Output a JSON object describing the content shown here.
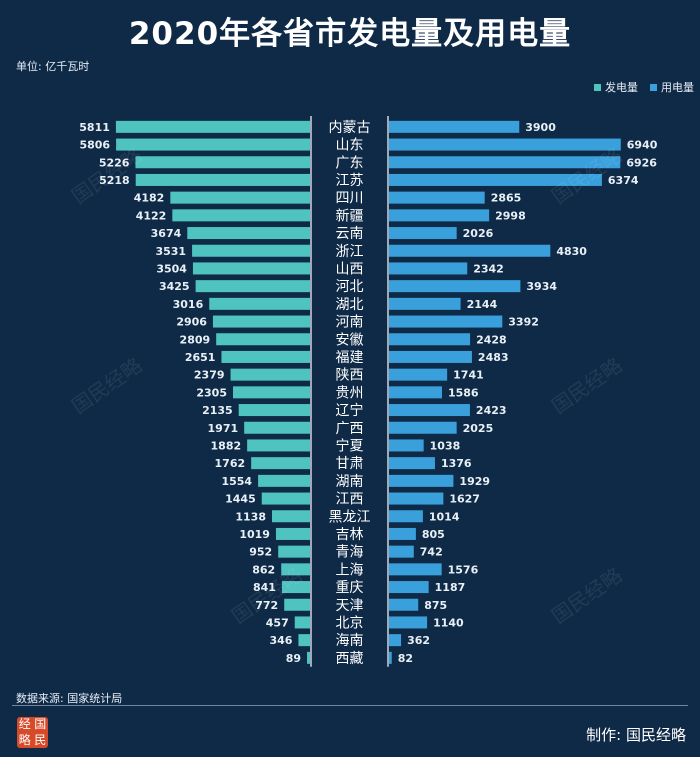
{
  "title": "2020年各省市发电量及用电量",
  "unit": "单位: 亿千瓦时",
  "legend": {
    "gen": "发电量",
    "use": "用电量"
  },
  "source": "数据来源: 国家统计局",
  "credit": "制作: 国民经略",
  "logo_chars": [
    "经",
    "国",
    "略",
    "民"
  ],
  "watermark": "国民经略",
  "colors": {
    "gen": "#4fc3c0",
    "use": "#3aa0dc",
    "bg": "#0f2a47",
    "axis": "#ffffff"
  },
  "chart_data": {
    "type": "bar",
    "title": "2020年各省市发电量及用电量",
    "xlabel": "",
    "ylabel": "单位: 亿千瓦时",
    "categories": [
      "内蒙古",
      "山东",
      "广东",
      "江苏",
      "四川",
      "新疆",
      "云南",
      "浙江",
      "山西",
      "河北",
      "湖北",
      "河南",
      "安徽",
      "福建",
      "陕西",
      "贵州",
      "辽宁",
      "广西",
      "宁夏",
      "甘肃",
      "湖南",
      "江西",
      "黑龙江",
      "吉林",
      "青海",
      "上海",
      "重庆",
      "天津",
      "北京",
      "海南",
      "西藏"
    ],
    "series": [
      {
        "name": "发电量",
        "values": [
          5811,
          5806,
          5226,
          5218,
          4182,
          4122,
          3674,
          3531,
          3504,
          3425,
          3016,
          2906,
          2809,
          2651,
          2379,
          2305,
          2135,
          1971,
          1882,
          1762,
          1554,
          1445,
          1138,
          1019,
          952,
          862,
          841,
          772,
          457,
          346,
          89
        ]
      },
      {
        "name": "用电量",
        "values": [
          3900,
          6940,
          6926,
          6374,
          2865,
          2998,
          2026,
          4830,
          2342,
          3934,
          2144,
          3392,
          2428,
          2483,
          1741,
          1586,
          2423,
          2025,
          1038,
          1376,
          1929,
          1627,
          1014,
          805,
          742,
          1576,
          1187,
          875,
          1140,
          362,
          82
        ]
      }
    ],
    "xlim": [
      0,
      7000
    ]
  }
}
